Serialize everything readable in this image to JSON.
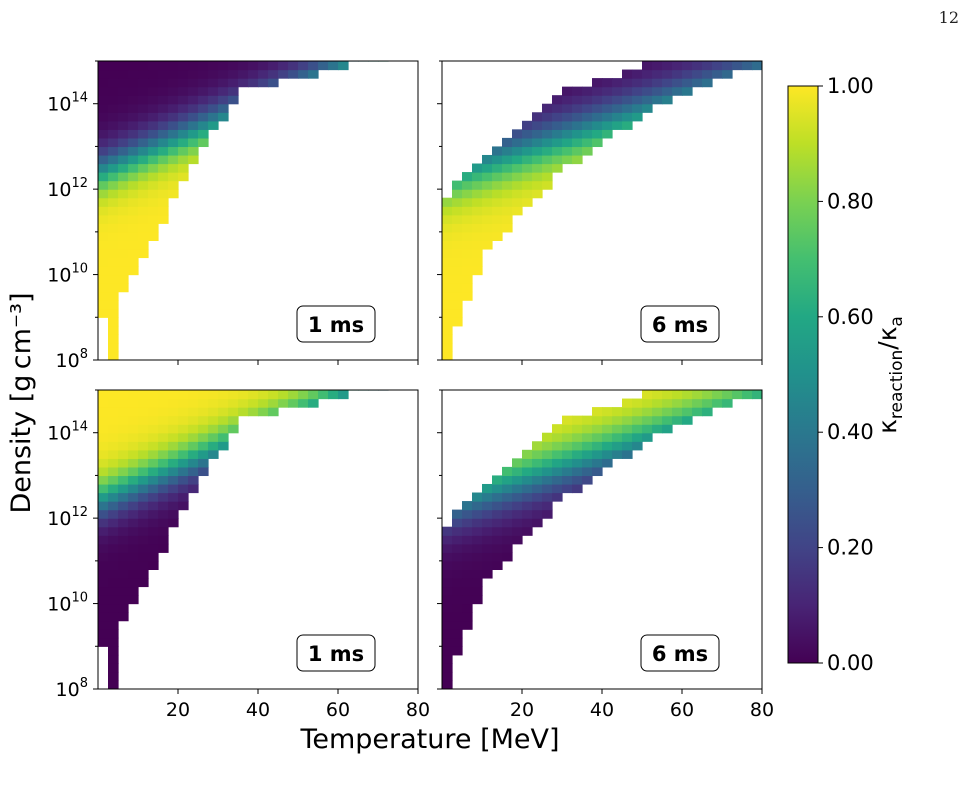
{
  "page_number": "12",
  "figure": {
    "ylabel": "Density [g cm⁻³]",
    "xlabel": "Temperature [MeV]",
    "colorbar_label": "κ_reaction/κ_a",
    "colormap": "viridis"
  },
  "chart_data": [
    {
      "type": "heatmap",
      "panel": "top-left",
      "annotation": "1 ms",
      "xlim": [
        0,
        80
      ],
      "ylim_log10": [
        8,
        15
      ],
      "x_ticks": [
        20,
        40,
        60,
        80
      ],
      "y_ticks": [
        "10^8",
        "10^10",
        "10^12",
        "10^14"
      ],
      "x_ticklabels_shown": false,
      "description_values": {
        "low_T_high_rho": 0.0,
        "high_T_low_rho_edge": 1.0
      },
      "colorscale_direction": "increasing_with_T_decreasing_with_rho",
      "rows": "valid_region_boundary",
      "boundary": [
        [
          8.0,
          1,
          4
        ],
        [
          8.5,
          1,
          5
        ],
        [
          9.0,
          1,
          5
        ],
        [
          9.5,
          1,
          6
        ],
        [
          10.0,
          1,
          8
        ],
        [
          10.5,
          1,
          10
        ],
        [
          11.0,
          1,
          12
        ],
        [
          11.5,
          1,
          15
        ],
        [
          12.0,
          1,
          18
        ],
        [
          12.5,
          1,
          22
        ],
        [
          13.0,
          1,
          26
        ],
        [
          13.5,
          1,
          30
        ],
        [
          14.0,
          1,
          35
        ],
        [
          14.5,
          1,
          45
        ],
        [
          14.8,
          1,
          58
        ]
      ]
    },
    {
      "type": "heatmap",
      "panel": "top-right",
      "annotation": "6 ms",
      "xlim": [
        0,
        80
      ],
      "ylim_log10": [
        8,
        15
      ],
      "x_ticks": [
        20,
        40,
        60,
        80
      ],
      "y_ticks": [
        "10^8",
        "10^10",
        "10^12",
        "10^14"
      ],
      "x_ticklabels_shown": false,
      "colorscale_direction": "increasing_with_T_decreasing_with_rho"
    },
    {
      "type": "heatmap",
      "panel": "bottom-left",
      "annotation": "1 ms",
      "xlim": [
        0,
        80
      ],
      "ylim_log10": [
        8,
        15
      ],
      "x_ticks": [
        20,
        40,
        60,
        80
      ],
      "y_ticks": [
        "10^8",
        "10^10",
        "10^12",
        "10^14"
      ],
      "x_ticklabels_shown": true,
      "colorscale_direction": "decreasing_with_T_increasing_with_rho"
    },
    {
      "type": "heatmap",
      "panel": "bottom-right",
      "annotation": "6 ms",
      "xlim": [
        0,
        80
      ],
      "ylim_log10": [
        8,
        15
      ],
      "x_ticks": [
        20,
        40,
        60,
        80
      ],
      "y_ticks": [
        "10^8",
        "10^10",
        "10^12",
        "10^14"
      ],
      "x_ticklabels_shown": true,
      "colorscale_direction": "decreasing_with_T_increasing_with_rho"
    }
  ],
  "colorbar": {
    "range": [
      0.0,
      1.0
    ],
    "ticks": [
      "0.00",
      "0.20",
      "0.40",
      "0.60",
      "0.80",
      "1.00"
    ]
  }
}
